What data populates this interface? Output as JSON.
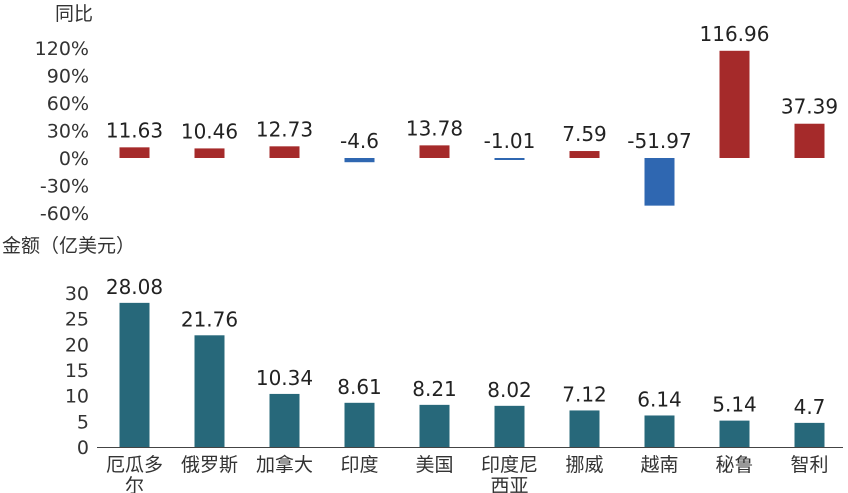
{
  "chart_data": [
    {
      "type": "bar",
      "ylabel": "同比",
      "ylim": [
        -60,
        120
      ],
      "yticks": [
        "120%",
        "90%",
        "60%",
        "30%",
        "0%",
        "-30%",
        "-60%"
      ],
      "ytick_values": [
        120,
        90,
        60,
        30,
        0,
        -30,
        -60
      ],
      "categories": [
        "厄瓜多尔",
        "俄罗斯",
        "加拿大",
        "印度",
        "美国",
        "印度尼西亚",
        "挪威",
        "越南",
        "秘鲁",
        "智利"
      ],
      "values": [
        11.63,
        10.46,
        12.73,
        -4.6,
        13.78,
        -1.01,
        7.59,
        -51.97,
        116.96,
        37.39
      ],
      "data_labels": [
        "11.63",
        "10.46",
        "12.73",
        "-4.6",
        "13.78",
        "-1.01",
        "7.59",
        "-51.97",
        "116.96",
        "37.39"
      ],
      "colors": {
        "positive": "#a52a2a",
        "negative": "#2f67b1"
      },
      "grid": false
    },
    {
      "type": "bar",
      "ylabel": "金额（亿美元）",
      "ylim": [
        0,
        30
      ],
      "yticks": [
        "30",
        "25",
        "20",
        "15",
        "10",
        "5",
        "0"
      ],
      "ytick_values": [
        30,
        25,
        20,
        15,
        10,
        5,
        0
      ],
      "categories": [
        "厄瓜多尔",
        "俄罗斯",
        "加拿大",
        "印度",
        "美国",
        "印度尼西亚",
        "挪威",
        "越南",
        "秘鲁",
        "智利"
      ],
      "category_lines": [
        [
          "厄瓜多",
          "尔"
        ],
        [
          "俄罗斯"
        ],
        [
          "加拿大"
        ],
        [
          "印度"
        ],
        [
          "美国"
        ],
        [
          "印度尼",
          "西亚"
        ],
        [
          "挪威"
        ],
        [
          "越南"
        ],
        [
          "秘鲁"
        ],
        [
          "智利"
        ]
      ],
      "values": [
        28.08,
        21.76,
        10.34,
        8.61,
        8.21,
        8.02,
        7.12,
        6.14,
        5.14,
        4.7
      ],
      "data_labels": [
        "28.08",
        "21.76",
        "10.34",
        "8.61",
        "8.21",
        "8.02",
        "7.12",
        "6.14",
        "5.14",
        "4.7"
      ],
      "colors": {
        "bar": "#27687a",
        "axis": "#444444"
      },
      "grid": false
    }
  ]
}
